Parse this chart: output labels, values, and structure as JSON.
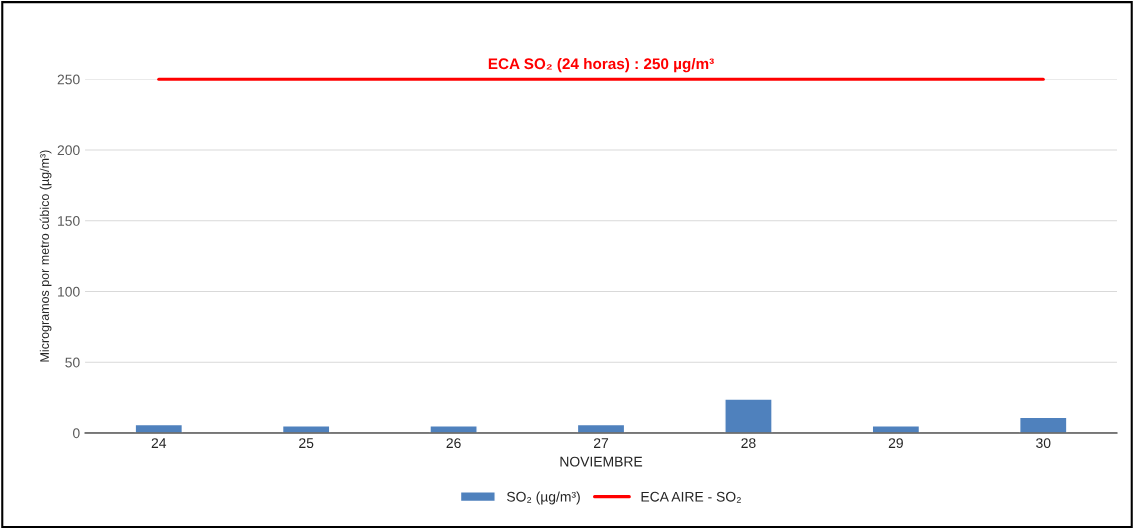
{
  "chart_data": {
    "type": "bar",
    "categories": [
      "24",
      "25",
      "26",
      "27",
      "28",
      "29",
      "30"
    ],
    "series": [
      {
        "name": "SO₂ (µg/m³)",
        "color": "#4f81bd",
        "values": [
          6,
          5,
          5,
          6,
          24,
          5,
          11
        ]
      },
      {
        "name": "ECA AIRE - SO₂",
        "type": "line",
        "color": "#ff0000",
        "values": [
          250,
          250,
          250,
          250,
          250,
          250,
          250
        ]
      }
    ],
    "annotations": [
      {
        "text": "ECA SO₂ (24 horas) : 250 µg/m³",
        "x": "27",
        "y": 250
      }
    ],
    "xlabel": "NOVIEMBRE",
    "ylabel": "Microgramos por metro cúbico (µg/m³)",
    "ylim": [
      0,
      250
    ],
    "yticks": [
      0,
      50,
      100,
      150,
      200,
      250
    ],
    "grid": "y",
    "legend": "bottom",
    "marker": "none",
    "line_style": "solid"
  }
}
